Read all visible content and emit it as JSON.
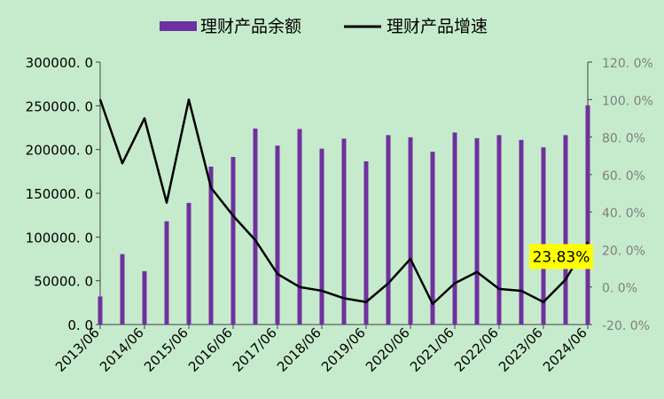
{
  "chart_data": {
    "type": "bar",
    "title": "",
    "legend_position": "top",
    "grid": false,
    "colors": {
      "background": "#C6EBCC",
      "bar": "#7030A0",
      "line": "#000000",
      "highlight_bg": "#FFFF00",
      "axis": "#404040"
    },
    "x_tick_labels": [
      "2013/06",
      "2014/06",
      "2015/06",
      "2016/06",
      "2017/06",
      "2018/06",
      "2019/06",
      "2020/06",
      "2021/06",
      "2022/06",
      "2023/06",
      "2024/06"
    ],
    "periods": [
      "2013/06",
      "2013/12",
      "2014/06",
      "2014/12",
      "2015/06",
      "2015/12",
      "2016/06",
      "2016/12",
      "2017/06",
      "2017/12",
      "2018/06",
      "2018/12",
      "2019/06",
      "2019/12",
      "2020/06",
      "2020/12",
      "2021/06",
      "2021/12",
      "2022/06",
      "2022/12",
      "2023/06",
      "2023/12",
      "2024/06"
    ],
    "y_left": {
      "min": 0,
      "max": 300000,
      "ticks": [
        "300000. 0",
        "250000. 0",
        "200000. 0",
        "150000. 0",
        "100000. 0",
        "50000. 0",
        "0. 0"
      ],
      "tick_values": [
        300000,
        250000,
        200000,
        150000,
        100000,
        50000,
        0
      ]
    },
    "y_right": {
      "min": -20,
      "max": 120,
      "ticks": [
        "120. 0%",
        "100. 0%",
        "80. 0%",
        "60. 0%",
        "40. 0%",
        "20. 0%",
        "0. 0%",
        "-20. 0%"
      ],
      "tick_values": [
        120,
        100,
        80,
        60,
        40,
        20,
        0,
        -20
      ]
    },
    "series": [
      {
        "name": "理财产品余额",
        "type": "bar",
        "axis": "left",
        "values": [
          32000,
          80500,
          61000,
          118000,
          139000,
          180500,
          191500,
          224000,
          204500,
          223500,
          201000,
          212500,
          186500,
          216500,
          214000,
          197500,
          219500,
          213000,
          216500,
          211000,
          202500,
          216500,
          250500
        ]
      },
      {
        "name": "理财产品增速",
        "type": "line",
        "axis": "right",
        "values": [
          100,
          66,
          90,
          45,
          100,
          53,
          38,
          25,
          7,
          0,
          -2,
          -6,
          -8,
          2,
          15,
          -9,
          2,
          8,
          -1,
          -2,
          -8,
          4,
          23.83
        ]
      }
    ],
    "annotation": {
      "text": "23.83%",
      "series": "理财产品增速",
      "point_index": 22
    }
  }
}
